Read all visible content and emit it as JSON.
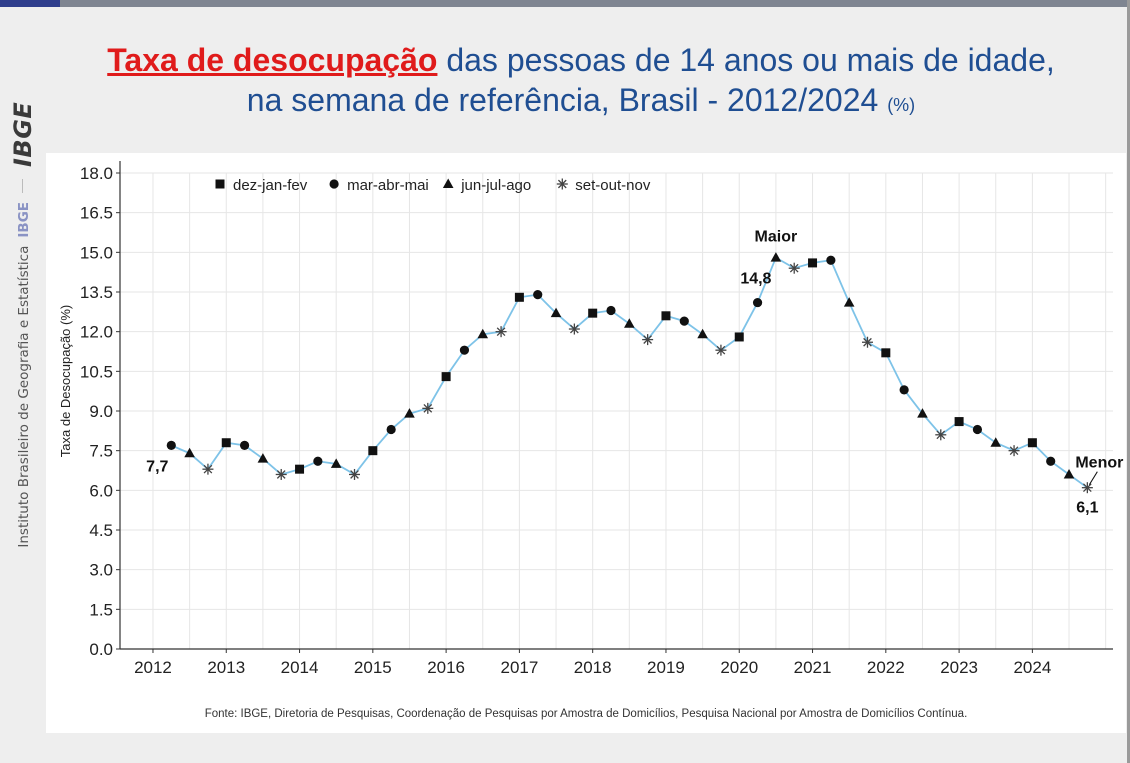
{
  "sidebar": {
    "logo": "IBGE",
    "institution": "Instituto Brasileiro de Geografia e Estatística",
    "institution_short": "IBGE"
  },
  "title": {
    "highlight": "Taxa de desocupação",
    "rest": " das pessoas de 14 anos ou mais de idade,",
    "line2": "na semana de referência, Brasil - 2012/2024",
    "unit": "(%)"
  },
  "source": "Fonte: IBGE, Diretoria de Pesquisas, Coordenação de Pesquisas por Amostra de Domicílios, Pesquisa Nacional por Amostra de Domicílios Contínua.",
  "colors": {
    "title": "#1f4e92",
    "highlight": "#e01b1b",
    "line": "#7ec3e8",
    "marker": "#111111",
    "grid": "#e6e6e6"
  },
  "chart_data": {
    "type": "line",
    "ylabel": "Taxa de Desocupação (%)",
    "xlabel": "",
    "ylim": [
      0,
      18
    ],
    "yticks": [
      0.0,
      1.5,
      3.0,
      4.5,
      6.0,
      7.5,
      9.0,
      10.5,
      12.0,
      13.5,
      15.0,
      16.5,
      18.0
    ],
    "ytick_labels": [
      "0.0",
      "1.5",
      "3.0",
      "4.5",
      "6.0",
      "7.5",
      "9.0",
      "10.5",
      "12.0",
      "13.5",
      "15.0",
      "16.5",
      "18.0"
    ],
    "xlim": [
      2011.55,
      2025.1
    ],
    "xticks": [
      2012,
      2013,
      2014,
      2015,
      2016,
      2017,
      2018,
      2019,
      2020,
      2021,
      2022,
      2023,
      2024
    ],
    "xtick_labels": [
      "2012",
      "2013",
      "2014",
      "2015",
      "2016",
      "2017",
      "2018",
      "2019",
      "2020",
      "2021",
      "2022",
      "2023",
      "2024"
    ],
    "legend_position": "top-left",
    "grid": true,
    "legend": [
      {
        "label": "dez-jan-fev",
        "marker": "square"
      },
      {
        "label": "mar-abr-mai",
        "marker": "circle"
      },
      {
        "label": "jun-jul-ago",
        "marker": "triangle"
      },
      {
        "label": "set-out-nov",
        "marker": "asterisk"
      }
    ],
    "x": [
      2012.25,
      2012.5,
      2012.75,
      2013.0,
      2013.25,
      2013.5,
      2013.75,
      2014.0,
      2014.25,
      2014.5,
      2014.75,
      2015.0,
      2015.25,
      2015.5,
      2015.75,
      2016.0,
      2016.25,
      2016.5,
      2016.75,
      2017.0,
      2017.25,
      2017.5,
      2017.75,
      2018.0,
      2018.25,
      2018.5,
      2018.75,
      2019.0,
      2019.25,
      2019.5,
      2019.75,
      2020.0,
      2020.25,
      2020.5,
      2020.75,
      2021.0,
      2021.25,
      2021.5,
      2021.75,
      2022.0,
      2022.25,
      2022.5,
      2022.75,
      2023.0,
      2023.25,
      2023.5,
      2023.75,
      2024.0,
      2024.25,
      2024.5,
      2024.75
    ],
    "values": [
      7.7,
      7.4,
      6.8,
      7.8,
      7.7,
      7.2,
      6.6,
      6.8,
      7.1,
      7.0,
      6.6,
      7.5,
      8.3,
      8.9,
      9.1,
      10.3,
      11.3,
      11.9,
      12.0,
      13.3,
      13.4,
      12.7,
      12.1,
      12.7,
      12.8,
      12.3,
      11.7,
      12.6,
      12.4,
      11.9,
      11.3,
      11.8,
      13.1,
      14.8,
      14.4,
      14.6,
      14.7,
      13.1,
      11.6,
      11.2,
      9.8,
      8.9,
      8.1,
      8.6,
      8.3,
      7.8,
      7.5,
      7.8,
      7.1,
      6.6,
      6.1
    ],
    "markers": [
      "circle",
      "triangle",
      "asterisk",
      "square",
      "circle",
      "triangle",
      "asterisk",
      "square",
      "circle",
      "triangle",
      "asterisk",
      "square",
      "circle",
      "triangle",
      "asterisk",
      "square",
      "circle",
      "triangle",
      "asterisk",
      "square",
      "circle",
      "triangle",
      "asterisk",
      "square",
      "circle",
      "triangle",
      "asterisk",
      "square",
      "circle",
      "triangle",
      "asterisk",
      "square",
      "circle",
      "triangle",
      "asterisk",
      "square",
      "circle",
      "triangle",
      "asterisk",
      "square",
      "circle",
      "triangle",
      "asterisk",
      "square",
      "circle",
      "triangle",
      "asterisk",
      "square",
      "circle",
      "triangle",
      "asterisk"
    ],
    "annotations": [
      {
        "text": "7,7",
        "x": 2012.25,
        "y": 7.7,
        "placement": "below-left"
      },
      {
        "text": "Maior",
        "x": 2020.5,
        "y": 14.8,
        "placement": "above"
      },
      {
        "text": "14,8",
        "x": 2020.5,
        "y": 14.8,
        "placement": "below-left"
      },
      {
        "text": "Menor",
        "x": 2024.75,
        "y": 6.1,
        "placement": "above-right"
      },
      {
        "text": "6,1",
        "x": 2024.75,
        "y": 6.1,
        "placement": "below"
      }
    ]
  }
}
